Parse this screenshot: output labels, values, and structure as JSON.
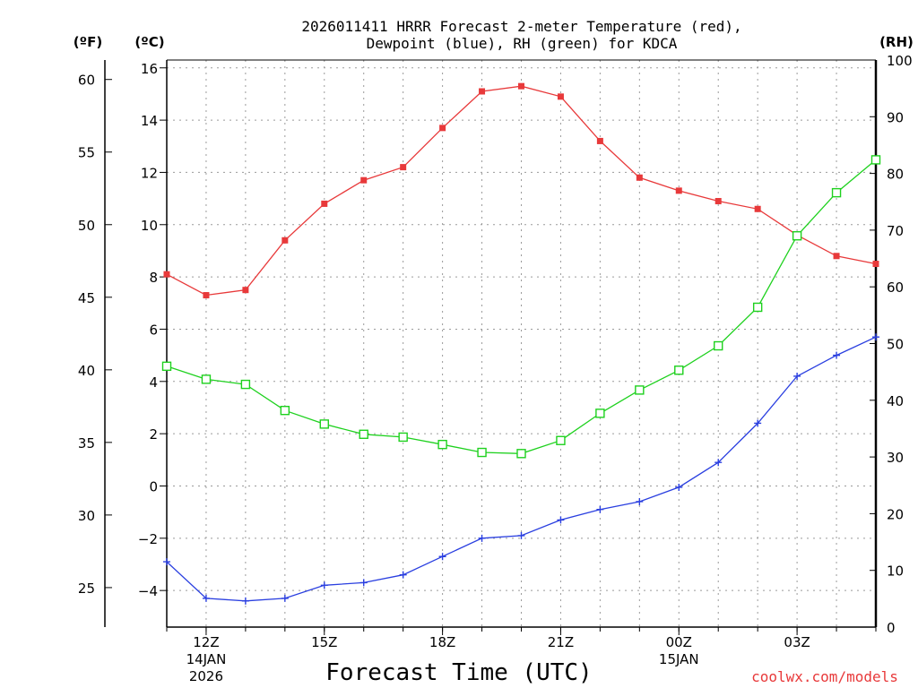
{
  "chart_data": {
    "type": "line",
    "title_line1": "2026011411 HRRR Forecast 2-meter Temperature (red),",
    "title_line2": "Dewpoint (blue), RH (green) for KDCA",
    "xlabel": "Forecast Time (UTC)",
    "credit": "coolwx.com/models",
    "units": {
      "fahrenheit": "(ºF)",
      "celsius": "(ºC)",
      "rh": "(RH)"
    },
    "x_hours": [
      11,
      12,
      13,
      14,
      15,
      16,
      17,
      18,
      19,
      20,
      21,
      22,
      23,
      24,
      25,
      26,
      27,
      28,
      29
    ],
    "xlim": [
      11,
      29
    ],
    "x_ticks": [
      {
        "hour": 12,
        "label": "12Z",
        "sub1": "14JAN",
        "sub2": "2026"
      },
      {
        "hour": 15,
        "label": "15Z",
        "sub1": "",
        "sub2": ""
      },
      {
        "hour": 18,
        "label": "18Z",
        "sub1": "",
        "sub2": ""
      },
      {
        "hour": 21,
        "label": "21Z",
        "sub1": "",
        "sub2": ""
      },
      {
        "hour": 24,
        "label": "00Z",
        "sub1": "15JAN",
        "sub2": ""
      },
      {
        "hour": 27,
        "label": "03Z",
        "sub1": "",
        "sub2": ""
      }
    ],
    "y_celsius": {
      "range": [
        -5.4,
        16.3
      ],
      "ticks": [
        -4,
        -2,
        0,
        2,
        4,
        6,
        8,
        10,
        12,
        14,
        16
      ],
      "labels": [
        "−4",
        "−2",
        "0",
        "2",
        "4",
        "6",
        "8",
        "10",
        "12",
        "14",
        "16"
      ]
    },
    "y_fahrenheit": {
      "ticks": [
        25,
        30,
        35,
        40,
        45,
        50,
        55,
        60
      ],
      "labels": [
        "25",
        "30",
        "35",
        "40",
        "45",
        "50",
        "55",
        "60"
      ]
    },
    "y_rh": {
      "range": [
        0,
        100
      ],
      "ticks": [
        0,
        10,
        20,
        30,
        40,
        50,
        60,
        70,
        80,
        90,
        100
      ],
      "labels": [
        "0",
        "10",
        "20",
        "30",
        "40",
        "50",
        "60",
        "70",
        "80",
        "90",
        "100"
      ]
    },
    "series": [
      {
        "name": "2-meter Temperature",
        "axis": "celsius",
        "color": "#e8393a",
        "marker": "filled-square",
        "values": [
          8.1,
          7.3,
          7.5,
          9.4,
          10.8,
          11.7,
          12.2,
          13.7,
          15.1,
          15.3,
          14.9,
          13.2,
          11.8,
          11.3,
          10.9,
          10.6,
          9.6,
          8.8,
          8.5
        ]
      },
      {
        "name": "Dewpoint",
        "axis": "celsius",
        "color": "#2a3fe0",
        "marker": "plus",
        "values": [
          -2.9,
          -4.3,
          -4.4,
          -4.3,
          -3.8,
          -3.7,
          -3.4,
          -2.7,
          -2.0,
          -1.9,
          -1.3,
          -0.9,
          -0.6,
          -0.05,
          0.9,
          2.4,
          4.2,
          5.0,
          5.7
        ]
      },
      {
        "name": "RH",
        "axis": "rh",
        "color": "#1ed11e",
        "marker": "open-square",
        "values": [
          46,
          43.7,
          42.8,
          38.2,
          35.8,
          34.0,
          33.5,
          32.2,
          30.8,
          30.6,
          32.9,
          37.7,
          41.8,
          45.3,
          49.6,
          56.4,
          69.0,
          76.6,
          82.4
        ]
      }
    ]
  }
}
